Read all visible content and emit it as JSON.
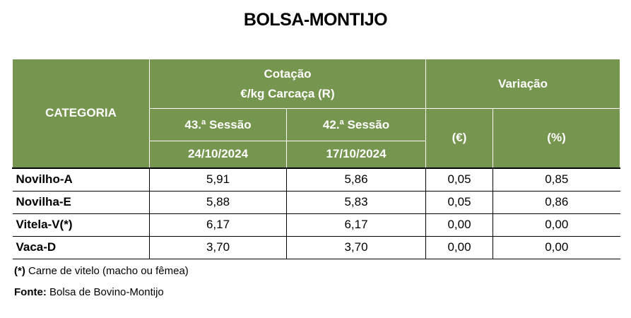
{
  "title": "BOLSA-MONTIJO",
  "header": {
    "categoria": "CATEGORIA",
    "cotacao_line1": "Cotação",
    "cotacao_line2": "€/kg Carcaça (R)",
    "variacao": "Variação",
    "session1": "43.ª Sessão",
    "session2": "42.ª Sessão",
    "date1": "24/10/2024",
    "date2": "17/10/2024",
    "var_eur": "(€)",
    "var_pct": "(%)"
  },
  "rows": [
    {
      "categoria": "Novilho-A",
      "s1": "5,91",
      "s2": "5,86",
      "eur": "0,05",
      "pct": "0,85"
    },
    {
      "categoria": "Novilha-E",
      "s1": "5,88",
      "s2": "5,83",
      "eur": "0,05",
      "pct": "0,86"
    },
    {
      "categoria": "Vitela-V(*)",
      "s1": "6,17",
      "s2": "6,17",
      "eur": "0,00",
      "pct": "0,00"
    },
    {
      "categoria": "Vaca-D",
      "s1": "3,70",
      "s2": "3,70",
      "eur": "0,00",
      "pct": "0,00"
    }
  ],
  "notes": {
    "note_marker": "(*)",
    "note_text": " Carne de vitelo (macho ou fêmea)",
    "fonte_label": "Fonte:",
    "fonte_text": " Bolsa de Bovino-Montijo"
  },
  "colors": {
    "header_bg": "#76954f",
    "header_text": "#ffffff"
  }
}
